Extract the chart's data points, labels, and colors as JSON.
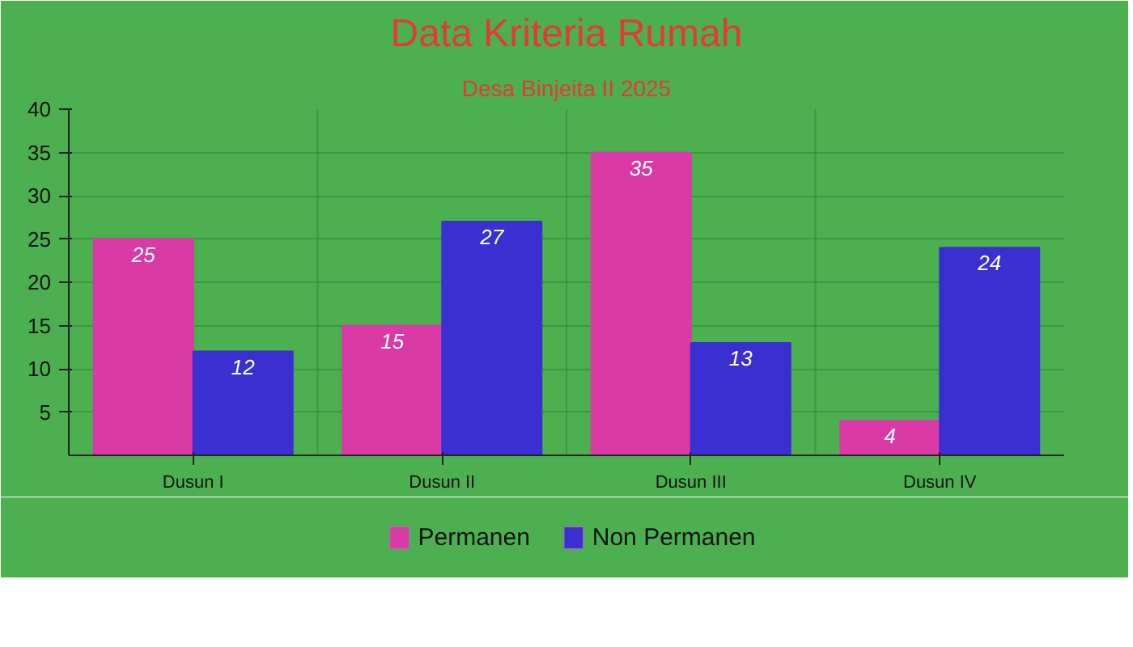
{
  "chart_data": {
    "type": "bar",
    "title": "Data Kriteria Rumah",
    "subtitle": "Desa Binjeita II 2025",
    "categories": [
      "Dusun I",
      "Dusun II",
      "Dusun III",
      "Dusun IV"
    ],
    "series": [
      {
        "name": "Permanen",
        "color": "#d93aa6",
        "values": [
          25,
          15,
          35,
          4
        ]
      },
      {
        "name": "Non Permanen",
        "color": "#3a2fd0",
        "values": [
          12,
          27,
          13,
          24
        ]
      }
    ],
    "ylim": [
      0,
      40
    ],
    "yticks": [
      5,
      10,
      15,
      20,
      25,
      30,
      35,
      40
    ],
    "grid": "y",
    "legend": "bottom",
    "data_labels": true
  }
}
